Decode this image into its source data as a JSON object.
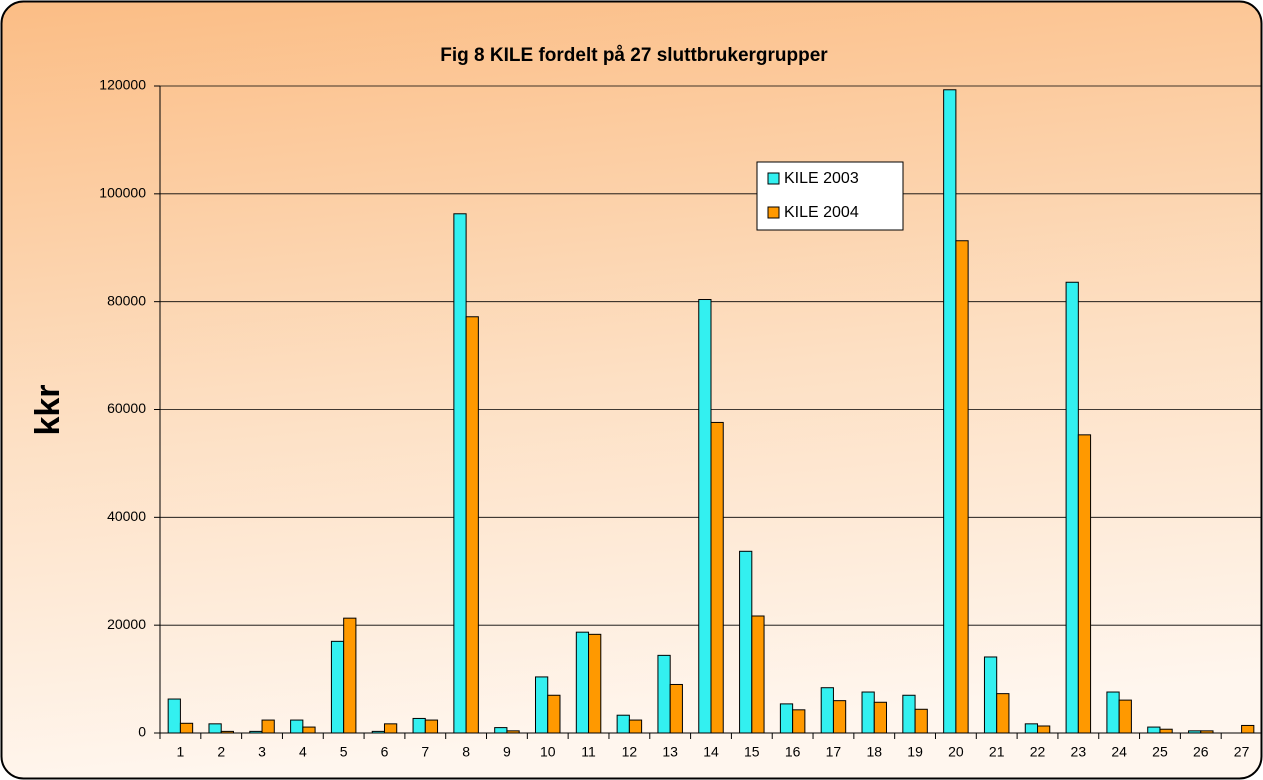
{
  "chart_data": {
    "type": "bar",
    "title": "Fig 8  KILE fordelt på 27 sluttbrukergrupper",
    "y_label": "kkr",
    "categories": [
      "1",
      "2",
      "3",
      "4",
      "5",
      "6",
      "7",
      "8",
      "9",
      "10",
      "11",
      "12",
      "13",
      "14",
      "15",
      "16",
      "17",
      "18",
      "19",
      "20",
      "21",
      "22",
      "23",
      "24",
      "25",
      "26",
      "27"
    ],
    "series": [
      {
        "name": "KILE 2003",
        "color": "#33f0f0",
        "values": [
          6300,
          1700,
          300,
          2400,
          17000,
          300,
          2700,
          96300,
          1000,
          10400,
          18700,
          3300,
          14400,
          80400,
          33700,
          5400,
          8400,
          7600,
          7000,
          119300,
          14100,
          1700,
          83600,
          7600,
          1100,
          400,
          0
        ]
      },
      {
        "name": "KILE 2004",
        "color": "#ff9900",
        "values": [
          1800,
          300,
          2400,
          1100,
          21300,
          1700,
          2400,
          77200,
          400,
          7000,
          18300,
          2400,
          9000,
          57600,
          21700,
          4300,
          6000,
          5700,
          4400,
          91300,
          7300,
          1300,
          55300,
          6100,
          700,
          400,
          1400
        ]
      }
    ],
    "ylim": [
      0,
      120000
    ],
    "yticks": [
      0,
      20000,
      40000,
      60000,
      80000,
      100000,
      120000
    ],
    "grid": true
  }
}
